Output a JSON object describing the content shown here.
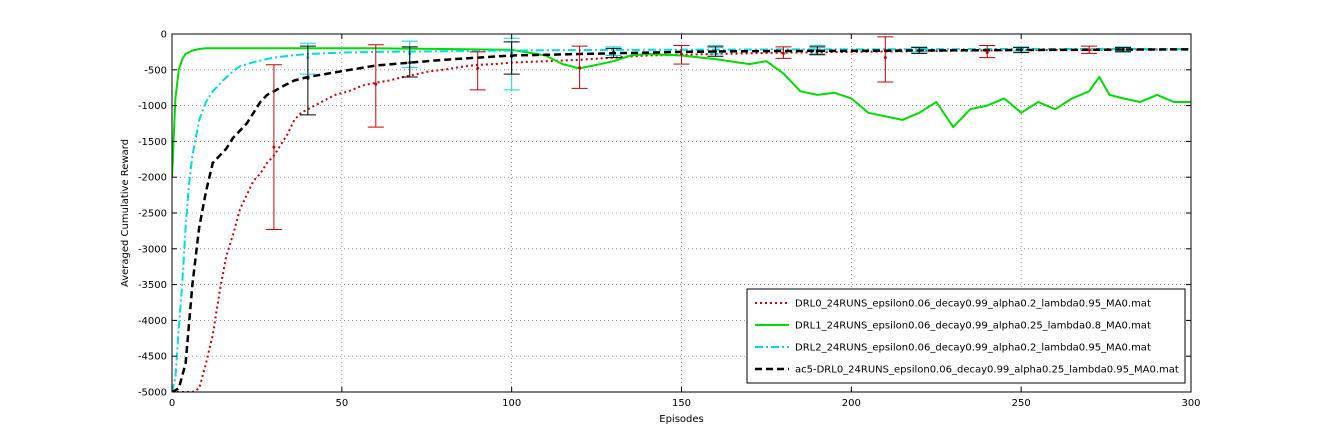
{
  "chart_data": {
    "type": "line",
    "title": "",
    "xlabel": "Episodes",
    "ylabel": "Averaged Cumulative Reward",
    "xlim": [
      0,
      300
    ],
    "ylim": [
      -5000,
      0
    ],
    "xticks": [
      "0",
      "50",
      "100",
      "150",
      "200",
      "250",
      "300"
    ],
    "yticks": [
      "0",
      "-500",
      "-1000",
      "-1500",
      "-2000",
      "-2500",
      "-3000",
      "-3500",
      "-4000",
      "-4500",
      "-5000"
    ],
    "grid": true,
    "legend_position": "bottom-right",
    "series": [
      {
        "name": "DRL0_24RUNS_epsilon0.06_decay0.99_alpha0.2_lambda0.95_MA0.mat",
        "color": "#cc0000",
        "style": "dotted",
        "x": [
          0,
          2,
          4,
          6,
          8,
          10,
          12,
          14,
          16,
          18,
          20,
          22,
          24,
          26,
          28,
          30,
          32,
          34,
          36,
          38,
          40,
          44,
          48,
          52,
          56,
          60,
          64,
          68,
          72,
          76,
          80,
          85,
          90,
          95,
          100,
          110,
          120,
          130,
          140,
          150,
          160,
          170,
          180,
          190,
          200,
          210,
          220,
          230,
          240,
          250,
          260,
          270,
          280,
          290,
          300
        ],
        "y": [
          -5000,
          -5000,
          -5000,
          -5000,
          -4950,
          -4600,
          -4200,
          -3600,
          -3100,
          -2800,
          -2450,
          -2250,
          -2050,
          -1950,
          -1800,
          -1700,
          -1550,
          -1400,
          -1200,
          -1100,
          -1050,
          -950,
          -850,
          -800,
          -720,
          -680,
          -650,
          -600,
          -560,
          -520,
          -500,
          -460,
          -430,
          -420,
          -400,
          -380,
          -360,
          -330,
          -300,
          -290,
          -280,
          -270,
          -260,
          -255,
          -250,
          -245,
          -240,
          -235,
          -230,
          -225,
          -222,
          -220,
          -218,
          -216,
          -215
        ]
      },
      {
        "name": "DRL1_24RUNS_epsilon0.06_decay0.99_alpha0.25_lambda0.8_MA0.mat",
        "color": "#00dd00",
        "style": "solid",
        "x": [
          0,
          1,
          2,
          3,
          4,
          6,
          8,
          10,
          20,
          40,
          60,
          80,
          100,
          110,
          115,
          120,
          125,
          130,
          135,
          140,
          150,
          160,
          170,
          175,
          180,
          185,
          190,
          195,
          200,
          205,
          210,
          215,
          220,
          225,
          230,
          235,
          240,
          245,
          250,
          255,
          260,
          265,
          270,
          273,
          276,
          280,
          285,
          290,
          295,
          300
        ],
        "y": [
          -2000,
          -900,
          -500,
          -350,
          -280,
          -230,
          -210,
          -200,
          -200,
          -200,
          -200,
          -210,
          -220,
          -300,
          -420,
          -480,
          -430,
          -380,
          -300,
          -280,
          -300,
          -350,
          -420,
          -380,
          -550,
          -800,
          -850,
          -820,
          -900,
          -1100,
          -1150,
          -1200,
          -1100,
          -950,
          -1300,
          -1050,
          -1000,
          -900,
          -1100,
          -950,
          -1050,
          -900,
          -800,
          -600,
          -850,
          -900,
          -950,
          -850,
          -950,
          -950
        ]
      },
      {
        "name": "DRL2_24RUNS_epsilon0.06_decay0.99_alpha0.2_lambda0.95_MA0.mat",
        "color": "#00dddd",
        "style": "dashdot",
        "x": [
          0,
          1,
          2,
          3,
          4,
          5,
          6,
          8,
          10,
          12,
          15,
          18,
          20,
          25,
          30,
          35,
          40,
          50,
          60,
          80,
          100,
          120,
          140,
          160,
          180,
          200,
          220,
          240,
          260,
          280,
          300
        ],
        "y": [
          -5000,
          -4800,
          -4100,
          -3500,
          -2700,
          -2100,
          -1700,
          -1200,
          -950,
          -800,
          -650,
          -520,
          -450,
          -380,
          -330,
          -300,
          -280,
          -260,
          -250,
          -240,
          -230,
          -225,
          -220,
          -218,
          -215,
          -215,
          -212,
          -210,
          -210,
          -210,
          -210
        ]
      },
      {
        "name": "ac5-DRL0_24RUNS_epsilon0.06_decay0.99_alpha0.25_lambda0.95_MA0.mat",
        "color": "#000000",
        "style": "dashed",
        "x": [
          0,
          2,
          4,
          6,
          8,
          10,
          12,
          14,
          16,
          18,
          20,
          22,
          24,
          26,
          28,
          30,
          33,
          36,
          40,
          45,
          50,
          55,
          60,
          65,
          70,
          75,
          80,
          90,
          100,
          110,
          120,
          130,
          140,
          150,
          160,
          170,
          180,
          190,
          200,
          210,
          220,
          230,
          240,
          250,
          260,
          270,
          280,
          290,
          300
        ],
        "y": [
          -5000,
          -4950,
          -4600,
          -3500,
          -2700,
          -2200,
          -1800,
          -1700,
          -1600,
          -1450,
          -1350,
          -1250,
          -1100,
          -950,
          -850,
          -800,
          -720,
          -650,
          -600,
          -560,
          -520,
          -480,
          -440,
          -420,
          -400,
          -380,
          -360,
          -330,
          -300,
          -290,
          -280,
          -270,
          -260,
          -250,
          -245,
          -240,
          -238,
          -236,
          -234,
          -232,
          -230,
          -228,
          -226,
          -224,
          -222,
          -220,
          -218,
          -216,
          -214
        ]
      }
    ],
    "error_bars": [
      {
        "series": 0,
        "x": 30,
        "y": -1580,
        "low": -2730,
        "high": -430
      },
      {
        "series": 0,
        "x": 60,
        "y": -700,
        "low": -1300,
        "high": -150
      },
      {
        "series": 0,
        "x": 90,
        "y": -480,
        "low": -780,
        "high": -250
      },
      {
        "series": 0,
        "x": 120,
        "y": -470,
        "low": -760,
        "high": -170
      },
      {
        "series": 0,
        "x": 150,
        "y": -280,
        "low": -420,
        "high": -160
      },
      {
        "series": 0,
        "x": 180,
        "y": -270,
        "low": -340,
        "high": -180
      },
      {
        "series": 0,
        "x": 210,
        "y": -330,
        "low": -670,
        "high": -40
      },
      {
        "series": 0,
        "x": 240,
        "y": -260,
        "low": -330,
        "high": -160
      },
      {
        "series": 0,
        "x": 270,
        "y": -220,
        "low": -270,
        "high": -170
      },
      {
        "series": 2,
        "x": 40,
        "y": -330,
        "low": -560,
        "high": -130
      },
      {
        "series": 2,
        "x": 70,
        "y": -280,
        "low": -470,
        "high": -100
      },
      {
        "series": 2,
        "x": 100,
        "y": -260,
        "low": -780,
        "high": -60
      },
      {
        "series": 2,
        "x": 130,
        "y": -240,
        "low": -300,
        "high": -180
      },
      {
        "series": 2,
        "x": 160,
        "y": -220,
        "low": -280,
        "high": -160
      },
      {
        "series": 2,
        "x": 190,
        "y": -220,
        "low": -280,
        "high": -160
      },
      {
        "series": 2,
        "x": 220,
        "y": -215,
        "low": -250,
        "high": -180
      },
      {
        "series": 2,
        "x": 250,
        "y": -212,
        "low": -240,
        "high": -180
      },
      {
        "series": 2,
        "x": 280,
        "y": -210,
        "low": -240,
        "high": -180
      },
      {
        "series": 3,
        "x": 40,
        "y": -620,
        "low": -1130,
        "high": -170
      },
      {
        "series": 3,
        "x": 70,
        "y": -400,
        "low": -600,
        "high": -180
      },
      {
        "series": 3,
        "x": 100,
        "y": -310,
        "low": -560,
        "high": -110
      },
      {
        "series": 3,
        "x": 130,
        "y": -260,
        "low": -330,
        "high": -200
      },
      {
        "series": 3,
        "x": 160,
        "y": -245,
        "low": -310,
        "high": -180
      },
      {
        "series": 3,
        "x": 190,
        "y": -236,
        "low": -290,
        "high": -180
      },
      {
        "series": 3,
        "x": 220,
        "y": -230,
        "low": -270,
        "high": -190
      },
      {
        "series": 3,
        "x": 250,
        "y": -224,
        "low": -260,
        "high": -190
      },
      {
        "series": 3,
        "x": 280,
        "y": -218,
        "low": -250,
        "high": -190
      }
    ]
  }
}
